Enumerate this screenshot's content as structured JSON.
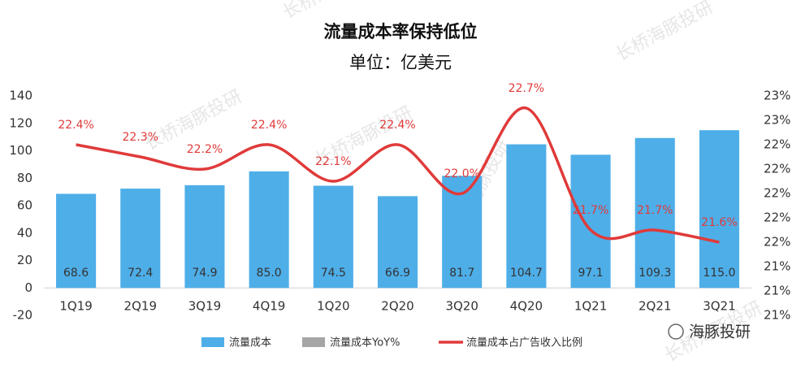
{
  "chart_data": {
    "type": "bar-line",
    "title": "流量成本率保持低位",
    "subtitle": "单位：亿美元",
    "watermark": "长桥海豚投研",
    "logo": "海豚投研",
    "categories": [
      "1Q19",
      "2Q19",
      "3Q19",
      "4Q19",
      "1Q20",
      "2Q20",
      "3Q20",
      "4Q20",
      "1Q21",
      "2Q21",
      "3Q21"
    ],
    "series": [
      {
        "name": "流量成本",
        "color": "#4eaee8",
        "type": "bar",
        "values": [
          68.6,
          72.4,
          74.9,
          85.0,
          74.5,
          66.9,
          81.7,
          104.7,
          97.1,
          109.3,
          115.0
        ],
        "value_labels": [
          "68.6",
          "72.4",
          "74.9",
          "85.0",
          "74.5",
          "66.9",
          "81.7",
          "104.7",
          "97.1",
          "109.3",
          "115.0"
        ]
      },
      {
        "name": "流量成本YoY%",
        "color": "#a6a6a6",
        "type": "bar",
        "values": [
          null,
          null,
          null,
          null,
          null,
          null,
          null,
          null,
          null,
          null,
          null
        ]
      },
      {
        "name": "流量成本占广告收入比例",
        "color": "#e03a3a",
        "type": "line",
        "axis": "y2",
        "values": [
          22.4,
          22.3,
          22.2,
          22.4,
          22.1,
          22.4,
          22.0,
          22.7,
          21.7,
          21.7,
          21.6
        ],
        "value_labels": [
          "22.4%",
          "22.3%",
          "22.2%",
          "22.4%",
          "22.1%",
          "22.4%",
          "22.0%",
          "22.7%",
          "21.7%",
          "21.7%",
          "21.6%"
        ]
      }
    ],
    "ylim": [
      -20,
      140
    ],
    "yticks": [
      -20,
      0,
      20,
      40,
      60,
      80,
      100,
      120,
      140
    ],
    "y2lim": [
      21.0,
      22.8
    ],
    "y2ticks": [
      {
        "value": 21.0,
        "label": "21%"
      },
      {
        "value": 21.2,
        "label": "21%"
      },
      {
        "value": 21.4,
        "label": "21%"
      },
      {
        "value": 21.6,
        "label": "22%"
      },
      {
        "value": 21.8,
        "label": "22%"
      },
      {
        "value": 22.0,
        "label": "22%"
      },
      {
        "value": 22.2,
        "label": "22%"
      },
      {
        "value": 22.4,
        "label": "22%"
      },
      {
        "value": 22.6,
        "label": "23%"
      },
      {
        "value": 22.8,
        "label": "23%"
      }
    ],
    "grid": false
  }
}
